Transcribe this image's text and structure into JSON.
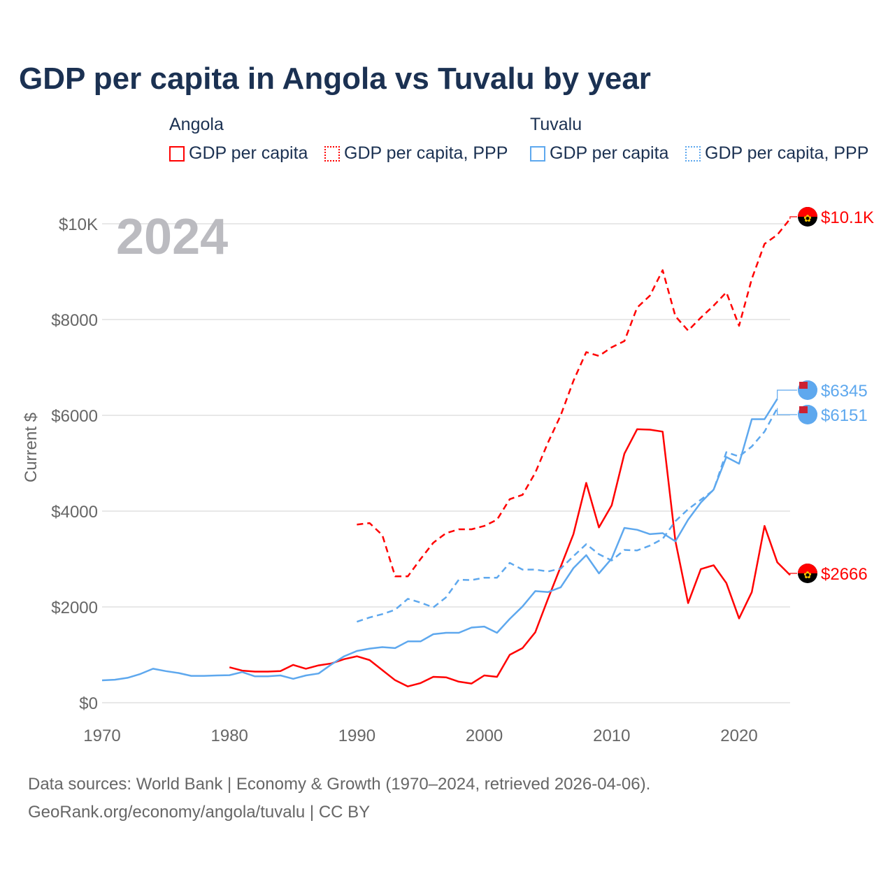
{
  "title": "GDP per capita in Angola vs Tuvalu by year",
  "legend": {
    "groups": [
      {
        "name": "Angola",
        "items": [
          "GDP per capita",
          "GDP per capita, PPP"
        ]
      },
      {
        "name": "Tuvalu",
        "items": [
          "GDP per capita",
          "GDP per capita, PPP"
        ]
      }
    ]
  },
  "footer": {
    "line1": "Data sources: World Bank | Economy & Growth (1970–2024, retrieved 2026-04-06).",
    "line2": "GeoRank.org/economy/angola/tuvalu | CC BY"
  },
  "chart_data": {
    "type": "line",
    "title": "GDP per capita in Angola vs Tuvalu by year",
    "xlabel": "",
    "ylabel": "Current $",
    "year_watermark": "2024",
    "xlim": [
      1970,
      2024
    ],
    "ylim": [
      0,
      10000
    ],
    "x_ticks": [
      "1970",
      "1980",
      "1990",
      "2000",
      "2010",
      "2020"
    ],
    "y_ticks": [
      {
        "v": 0,
        "label": "$0"
      },
      {
        "v": 2000,
        "label": "$2000"
      },
      {
        "v": 4000,
        "label": "$4000"
      },
      {
        "v": 6000,
        "label": "$6000"
      },
      {
        "v": 8000,
        "label": "$8000"
      },
      {
        "v": 10000,
        "label": "$10K"
      }
    ],
    "grid": true,
    "series": [
      {
        "name": "Angola GDP per capita",
        "color": "#ff0000",
        "dash": false,
        "start": 1980,
        "end_label": "$2666",
        "values": [
          740,
          670,
          650,
          650,
          660,
          790,
          710,
          780,
          820,
          910,
          970,
          890,
          680,
          470,
          340,
          410,
          540,
          530,
          440,
          400,
          570,
          540,
          1000,
          1140,
          1470,
          2170,
          2840,
          3520,
          4590,
          3660,
          4120,
          5200,
          5710,
          5700,
          5660,
          3380,
          2080,
          2790,
          2870,
          2500,
          1760,
          2310,
          3690,
          2930,
          2666
        ]
      },
      {
        "name": "Angola GDP per capita, PPP",
        "color": "#ff0000",
        "dash": true,
        "start": 1990,
        "end_label": "$10.1K",
        "values": [
          3720,
          3750,
          3500,
          2640,
          2640,
          3000,
          3340,
          3540,
          3620,
          3620,
          3690,
          3820,
          4250,
          4340,
          4800,
          5430,
          6000,
          6720,
          7320,
          7240,
          7420,
          7550,
          8250,
          8500,
          9030,
          8070,
          7770,
          8040,
          8290,
          8570,
          7870,
          8850,
          9580,
          9770,
          10100
        ]
      },
      {
        "name": "Tuvalu GDP per capita",
        "color": "#5ea8ee",
        "dash": false,
        "start": 1970,
        "end_label": "$6345",
        "values": [
          467,
          480,
          520,
          600,
          710,
          660,
          620,
          560,
          560,
          570,
          575,
          640,
          550,
          550,
          570,
          500,
          570,
          610,
          800,
          970,
          1080,
          1130,
          1160,
          1140,
          1280,
          1280,
          1430,
          1460,
          1460,
          1570,
          1590,
          1460,
          1750,
          2010,
          2330,
          2310,
          2410,
          2810,
          3080,
          2700,
          3010,
          3650,
          3610,
          3520,
          3540,
          3370,
          3820,
          4180,
          4450,
          5130,
          4990,
          5920,
          5920,
          6345
        ]
      },
      {
        "name": "Tuvalu GDP per capita, PPP",
        "color": "#5ea8ee",
        "dash": true,
        "start": 1990,
        "end_label": "$6151",
        "values": [
          1690,
          1780,
          1850,
          1940,
          2170,
          2090,
          1990,
          2200,
          2570,
          2560,
          2610,
          2610,
          2920,
          2780,
          2780,
          2740,
          2800,
          3060,
          3310,
          3100,
          2970,
          3190,
          3180,
          3280,
          3420,
          3790,
          4040,
          4240,
          4440,
          5230,
          5140,
          5350,
          5660,
          6151
        ]
      }
    ]
  }
}
